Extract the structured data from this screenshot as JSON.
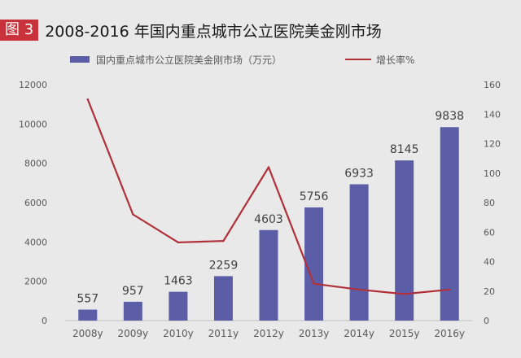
{
  "figure": {
    "badge": "图 3",
    "title": "2008-2016 年国内重点城市公立医院美金刚市场"
  },
  "colors": {
    "bar": "#5b5ea6",
    "line": "#b0303a",
    "badge": "#c8323a"
  },
  "chart_data": {
    "type": "bar",
    "title": "2008-2016 年国内重点城市公立医院美金刚市场",
    "categories": [
      "2008y",
      "2009y",
      "2010y",
      "2011y",
      "2012y",
      "2013y",
      "2014y",
      "2015y",
      "2016y"
    ],
    "series": [
      {
        "name": "国内重点城市公立医院美金刚市场（万元）",
        "type": "bar",
        "axis": "left",
        "values": [
          557,
          957,
          1463,
          2259,
          4603,
          5756,
          6933,
          8145,
          9838
        ],
        "value_labels": [
          "557",
          "957",
          "1463",
          "2259",
          "4603",
          "5756",
          "6933",
          "8145",
          "9838"
        ]
      },
      {
        "name": "增长率%",
        "type": "line",
        "axis": "right",
        "values": [
          150,
          72,
          53,
          54,
          104,
          25,
          21,
          18,
          21
        ]
      }
    ],
    "y_left": {
      "min": 0,
      "max": 12000,
      "ticks": [
        "0",
        "2000",
        "4000",
        "6000",
        "8000",
        "10000",
        "12000"
      ]
    },
    "y_right": {
      "min": 0,
      "max": 160,
      "ticks": [
        "0",
        "20",
        "40",
        "60",
        "80",
        "100",
        "120",
        "140",
        "160"
      ]
    },
    "legend_placement": "top",
    "grid": false
  }
}
